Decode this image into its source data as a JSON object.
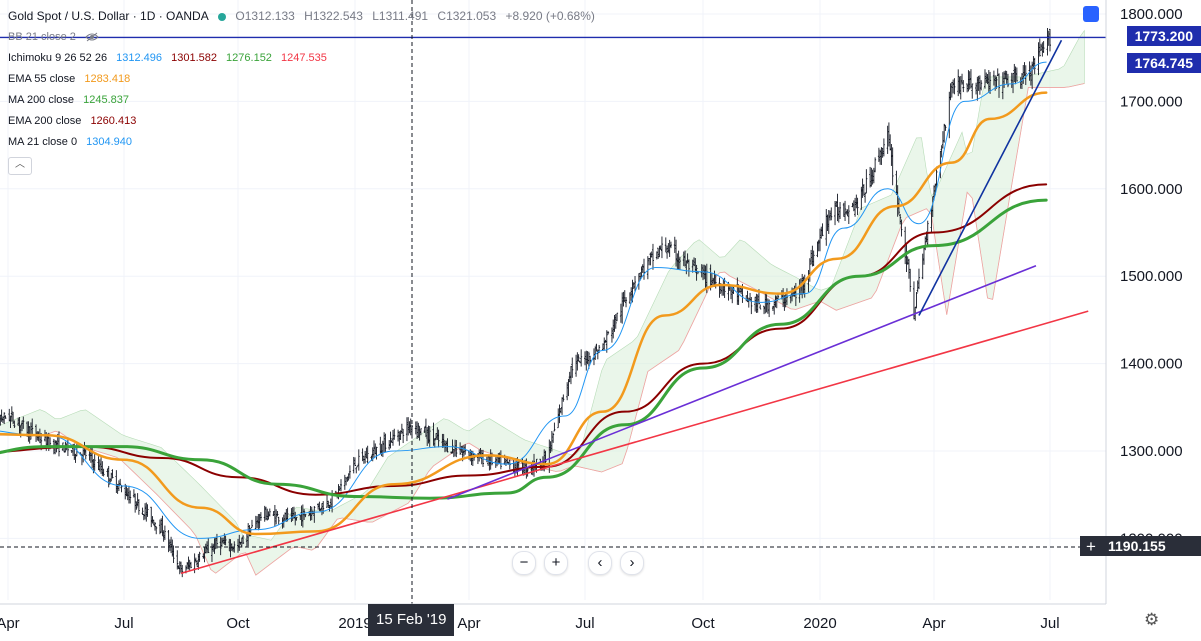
{
  "legend": {
    "symbol": "Gold Spot / U.S. Dollar · 1D · OANDA",
    "ohlc": {
      "o": "O1312.133",
      "h": "H1322.543",
      "l": "L1311.491",
      "c": "C1321.053",
      "change": "+8.920 (+0.68%)"
    },
    "bb": "BB 21 close 2",
    "ichimoku": {
      "label": "Ichimoku 9 26 52 26",
      "v1": "1312.496",
      "v2": "1301.582",
      "v3": "1276.152",
      "v4": "1247.535"
    },
    "ema55": {
      "label": "EMA 55 close",
      "value": "1283.418"
    },
    "ma200": {
      "label": "MA 200 close",
      "value": "1245.837"
    },
    "ema200": {
      "label": "EMA 200 close",
      "value": "1260.413"
    },
    "ma21": {
      "label": "MA 21 close 0",
      "value": "1304.940"
    }
  },
  "price_labels": {
    "top": "1773.200",
    "second": "1764.745",
    "cursor": "1190.155"
  },
  "date_badge": "15 Feb '19",
  "nav": {
    "zoom_out": "−",
    "zoom_in": "+",
    "prev": "‹",
    "next": "›"
  },
  "settings_icon": "gear-icon",
  "colors": {
    "candle": "#131722",
    "ema55": "#f29a1d",
    "ma200": "#3aa33a",
    "ema200": "#8b0000",
    "ma21": "#2196f3",
    "trend_red": "#f23645",
    "trend_purple": "#6a2fd6",
    "trend_blue": "#1033a0",
    "hline": "#1f2dad",
    "cloud_green": "#d8efd8",
    "cloud_red": "#f9d6d6"
  },
  "chart_data": {
    "type": "candlestick",
    "title": "Gold Spot / U.S. Dollar",
    "timeframe": "1D",
    "y_axis": {
      "min": 1100,
      "max": 1820,
      "ticks": [
        1200,
        1300,
        1400,
        1500,
        1600,
        1700,
        1800
      ],
      "tick_labels": [
        "1200.000",
        "1300.000",
        "1400.000",
        "1500.000",
        "1600.000",
        "1700.000",
        "1800.000"
      ]
    },
    "x_axis": {
      "ticks": [
        {
          "label": "Apr",
          "date": "2018-04"
        },
        {
          "label": "Jul",
          "date": "2018-07"
        },
        {
          "label": "Oct",
          "date": "2018-10"
        },
        {
          "label": "2019",
          "date": "2019-01"
        },
        {
          "label": "Apr",
          "date": "2019-04"
        },
        {
          "label": "Jul",
          "date": "2019-07"
        },
        {
          "label": "Oct",
          "date": "2019-10"
        },
        {
          "label": "2020",
          "date": "2020-01"
        },
        {
          "label": "Apr",
          "date": "2020-04"
        },
        {
          "label": "Jul",
          "date": "2020-07"
        }
      ]
    },
    "price_path": [
      [
        "2018-03-01",
        1322
      ],
      [
        "2018-04-01",
        1340
      ],
      [
        "2018-05-01",
        1310
      ],
      [
        "2018-06-01",
        1296
      ],
      [
        "2018-07-01",
        1255
      ],
      [
        "2018-08-01",
        1210
      ],
      [
        "2018-08-16",
        1162
      ],
      [
        "2018-09-15",
        1195
      ],
      [
        "2018-10-01",
        1190
      ],
      [
        "2018-10-20",
        1228
      ],
      [
        "2018-11-15",
        1222
      ],
      [
        "2018-12-15",
        1245
      ],
      [
        "2019-01-01",
        1285
      ],
      [
        "2019-02-15",
        1330
      ],
      [
        "2019-03-15",
        1305
      ],
      [
        "2019-04-15",
        1290
      ],
      [
        "2019-05-15",
        1280
      ],
      [
        "2019-06-01",
        1290
      ],
      [
        "2019-06-20",
        1395
      ],
      [
        "2019-07-15",
        1420
      ],
      [
        "2019-08-10",
        1500
      ],
      [
        "2019-09-01",
        1535
      ],
      [
        "2019-09-25",
        1505
      ],
      [
        "2019-10-15",
        1490
      ],
      [
        "2019-11-15",
        1465
      ],
      [
        "2019-12-15",
        1480
      ],
      [
        "2020-01-08",
        1570
      ],
      [
        "2020-02-01",
        1585
      ],
      [
        "2020-02-24",
        1660
      ],
      [
        "2020-03-16",
        1460
      ],
      [
        "2020-04-01",
        1600
      ],
      [
        "2020-04-15",
        1720
      ],
      [
        "2020-05-15",
        1720
      ],
      [
        "2020-06-15",
        1730
      ],
      [
        "2020-07-01",
        1773
      ]
    ],
    "indicators": {
      "ema55": {
        "color": "#f29a1d",
        "points": [
          [
            "2018-03-01",
            1320
          ],
          [
            "2018-05-01",
            1318
          ],
          [
            "2018-07-01",
            1290
          ],
          [
            "2018-09-01",
            1235
          ],
          [
            "2018-10-15",
            1205
          ],
          [
            "2018-12-01",
            1208
          ],
          [
            "2019-02-01",
            1262
          ],
          [
            "2019-04-15",
            1295
          ],
          [
            "2019-06-01",
            1285
          ],
          [
            "2019-07-15",
            1345
          ],
          [
            "2019-09-01",
            1455
          ],
          [
            "2019-10-15",
            1490
          ],
          [
            "2019-12-01",
            1480
          ],
          [
            "2020-01-15",
            1520
          ],
          [
            "2020-03-01",
            1580
          ],
          [
            "2020-04-15",
            1630
          ],
          [
            "2020-05-15",
            1680
          ],
          [
            "2020-06-28",
            1710
          ]
        ]
      },
      "ma200": {
        "color": "#3aa33a",
        "points": [
          [
            "2018-03-01",
            1295
          ],
          [
            "2018-05-01",
            1305
          ],
          [
            "2018-07-01",
            1305
          ],
          [
            "2018-09-01",
            1290
          ],
          [
            "2018-11-01",
            1262
          ],
          [
            "2019-01-01",
            1248
          ],
          [
            "2019-03-01",
            1246
          ],
          [
            "2019-05-01",
            1252
          ],
          [
            "2019-06-01",
            1270
          ],
          [
            "2019-08-01",
            1330
          ],
          [
            "2019-10-01",
            1395
          ],
          [
            "2019-12-01",
            1445
          ],
          [
            "2020-02-01",
            1500
          ],
          [
            "2020-04-01",
            1535
          ],
          [
            "2020-06-28",
            1587
          ]
        ]
      },
      "ema200": {
        "color": "#8b0000",
        "points": [
          [
            "2018-03-01",
            1298
          ],
          [
            "2018-06-01",
            1305
          ],
          [
            "2018-08-01",
            1292
          ],
          [
            "2018-10-01",
            1270
          ],
          [
            "2018-12-01",
            1250
          ],
          [
            "2019-02-01",
            1260
          ],
          [
            "2019-04-01",
            1272
          ],
          [
            "2019-06-01",
            1282
          ],
          [
            "2019-08-01",
            1345
          ],
          [
            "2019-10-01",
            1400
          ],
          [
            "2019-12-01",
            1440
          ],
          [
            "2020-02-01",
            1500
          ],
          [
            "2020-04-01",
            1550
          ],
          [
            "2020-06-28",
            1605
          ]
        ]
      },
      "ma21": {
        "color": "#2196f3",
        "points": [
          [
            "2018-03-01",
            1325
          ],
          [
            "2018-05-01",
            1318
          ],
          [
            "2018-07-01",
            1260
          ],
          [
            "2018-09-01",
            1200
          ],
          [
            "2018-10-15",
            1210
          ],
          [
            "2018-12-01",
            1230
          ],
          [
            "2019-02-01",
            1300
          ],
          [
            "2019-03-15",
            1305
          ],
          [
            "2019-05-01",
            1285
          ],
          [
            "2019-06-15",
            1340
          ],
          [
            "2019-07-15",
            1415
          ],
          [
            "2019-08-25",
            1510
          ],
          [
            "2019-10-01",
            1505
          ],
          [
            "2019-11-15",
            1470
          ],
          [
            "2019-12-20",
            1480
          ],
          [
            "2020-01-20",
            1555
          ],
          [
            "2020-02-24",
            1600
          ],
          [
            "2020-03-20",
            1560
          ],
          [
            "2020-04-25",
            1700
          ],
          [
            "2020-06-01",
            1720
          ],
          [
            "2020-06-28",
            1745
          ]
        ]
      }
    },
    "trendlines": [
      {
        "name": "red support",
        "color": "#f23645",
        "from": [
          "2018-08-16",
          1160
        ],
        "to": [
          "2020-07-31",
          1460
        ]
      },
      {
        "name": "purple",
        "color": "#6a2fd6",
        "from": [
          "2019-03-15",
          1245
        ],
        "to": [
          "2020-06-20",
          1512
        ]
      },
      {
        "name": "blue",
        "color": "#1033a0",
        "from": [
          "2020-03-20",
          1455
        ],
        "to": [
          "2020-07-10",
          1770
        ]
      }
    ],
    "horizontal_line": {
      "value": 1773.2,
      "color": "#1f2dad"
    },
    "crosshair": {
      "date": "2019-02-15",
      "price": 1190.155
    },
    "grid": true,
    "legend_position": "top-left"
  }
}
